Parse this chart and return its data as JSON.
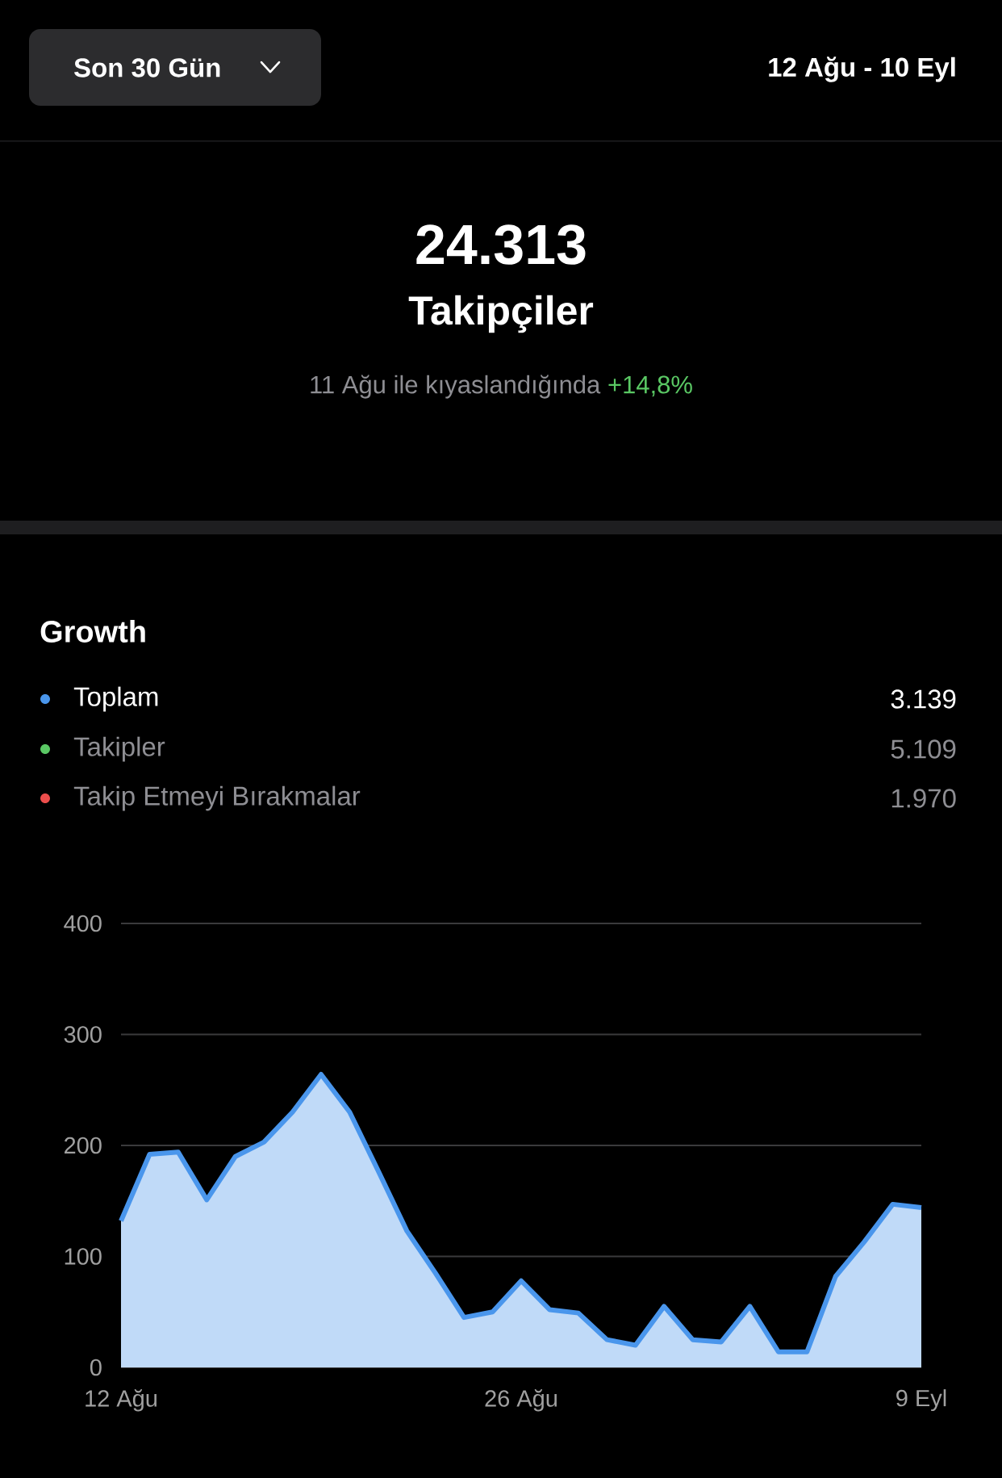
{
  "chart_data": {
    "type": "area",
    "title": "Growth",
    "categories": [
      "12 Ağu",
      null,
      null,
      null,
      null,
      null,
      null,
      null,
      null,
      null,
      null,
      null,
      null,
      null,
      "26 Ağu",
      null,
      null,
      null,
      null,
      null,
      null,
      null,
      null,
      null,
      null,
      null,
      null,
      null,
      "9 Eyl"
    ],
    "series": [
      {
        "name": "Toplam",
        "color": "#4a96ec",
        "values": [
          132,
          192,
          194,
          151,
          190,
          203,
          230,
          264,
          230,
          177,
          123,
          85,
          45,
          50,
          78,
          52,
          49,
          25,
          20,
          55,
          25,
          23,
          55,
          14,
          14,
          82,
          113,
          147,
          144
        ]
      }
    ],
    "ylim": [
      0,
      400
    ],
    "yticks": [
      0,
      100,
      200,
      300,
      400
    ],
    "grid": "y",
    "legend": "top",
    "annotations": [
      "Son 30 Gün",
      "12 Ağu - 10 Eyl",
      "24.313",
      "Takipçiler",
      "11 Ağu ile kıyaslandığında",
      "+14,8%",
      "3.139",
      "Takipler",
      "5.109",
      "Takip Etmeyi Bırakmalar",
      "1.970"
    ]
  }
}
